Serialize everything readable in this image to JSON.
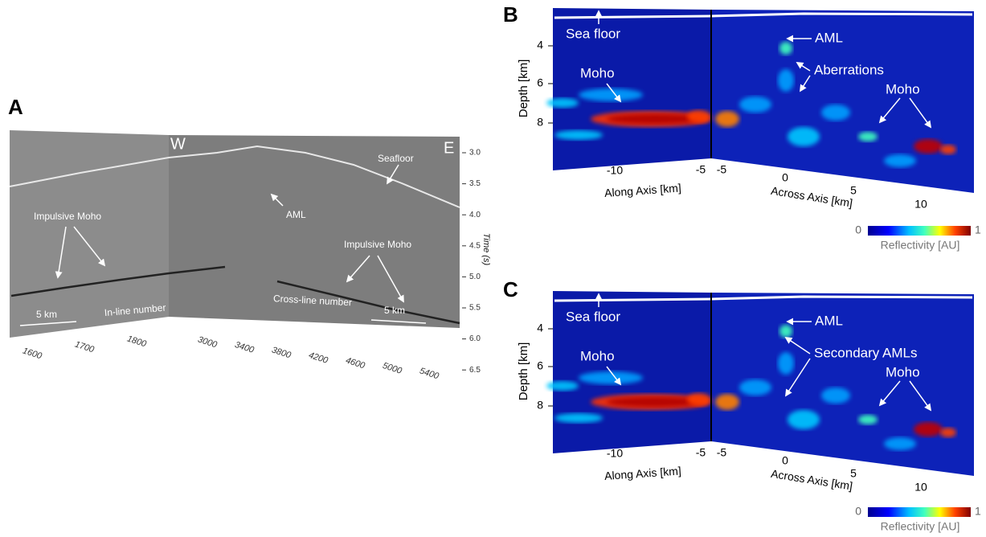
{
  "panel_a": {
    "label": "A",
    "west": "W",
    "east": "E",
    "seafloor": "Seafloor",
    "aml": "AML",
    "moho_left": "Impulsive Moho",
    "moho_right": "Impulsive Moho",
    "scale_left": "5 km",
    "scale_right": "5 km",
    "inline_title": "In-line number",
    "crossline_title": "Cross-line number",
    "inline_ticks": [
      "1600",
      "1700",
      "1800"
    ],
    "crossline_ticks": [
      "3000",
      "3400",
      "3800",
      "4200",
      "4600",
      "5000",
      "5400"
    ],
    "time_title": "Time (s)",
    "time_ticks": [
      "3.0",
      "3.5",
      "4.0",
      "4.5",
      "5.0",
      "5.5",
      "6.0",
      "6.5"
    ]
  },
  "panel_b": {
    "label": "B",
    "depth_title": "Depth [km]",
    "depth_ticks": [
      "4",
      "6",
      "8"
    ],
    "along_title": "Along Axis [km]",
    "along_ticks": [
      "-10",
      "-5"
    ],
    "across_title": "Across Axis [km]",
    "across_ticks": [
      "-5",
      "0",
      "5",
      "10"
    ],
    "colorbar_min": "0",
    "colorbar_max": "1",
    "colorbar_title": "Reflectivity [AU]",
    "annotations": [
      "Sea floor",
      "AML",
      "Aberrations",
      "Moho",
      "Moho"
    ]
  },
  "panel_c": {
    "label": "C",
    "depth_title": "Depth [km]",
    "depth_ticks": [
      "4",
      "6",
      "8"
    ],
    "along_title": "Along Axis [km]",
    "along_ticks": [
      "-10",
      "-5"
    ],
    "across_title": "Across Axis [km]",
    "across_ticks": [
      "-5",
      "0",
      "5",
      "10"
    ],
    "colorbar_min": "0",
    "colorbar_max": "1",
    "colorbar_title": "Reflectivity [AU]",
    "annotations": [
      "Sea floor",
      "AML",
      "Secondary AMLs",
      "Moho",
      "Moho"
    ]
  }
}
